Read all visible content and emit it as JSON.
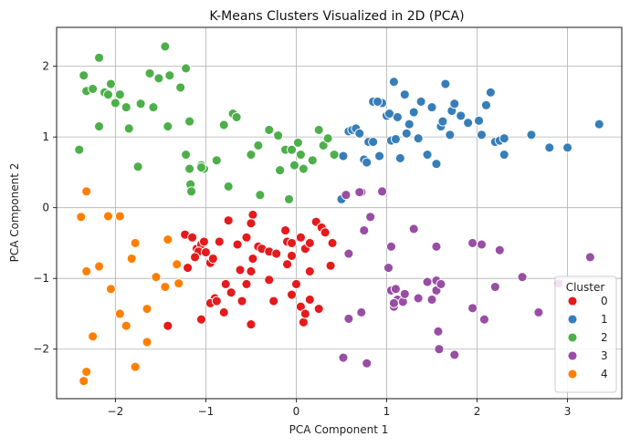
{
  "chart_data": {
    "type": "scatter",
    "title": "K-Means Clusters Visualized in 2D (PCA)",
    "xlabel": "PCA Component 1",
    "ylabel": "PCA Component 2",
    "xlim": [
      -2.65,
      3.6
    ],
    "ylim": [
      -2.7,
      2.55
    ],
    "xticks": [
      -2,
      -1,
      0,
      1,
      2,
      3
    ],
    "yticks": [
      -2,
      -1,
      0,
      1,
      2
    ],
    "grid": true,
    "legend": {
      "title": "Cluster",
      "placement": "bottom-right"
    },
    "series": [
      {
        "name": "0",
        "color": "#e41a1c",
        "points": [
          [
            -1.23,
            -0.38
          ],
          [
            -1.15,
            -0.42
          ],
          [
            -1.1,
            -0.58
          ],
          [
            -1.05,
            -0.52
          ],
          [
            -1.02,
            -0.48
          ],
          [
            -1.08,
            -0.62
          ],
          [
            -1.12,
            -0.7
          ],
          [
            -1.0,
            -0.63
          ],
          [
            -0.95,
            -0.78
          ],
          [
            -0.85,
            -0.48
          ],
          [
            -0.75,
            -0.18
          ],
          [
            -0.65,
            -0.52
          ],
          [
            -0.55,
            -0.42
          ],
          [
            -0.48,
            -0.1
          ],
          [
            -0.5,
            -0.22
          ],
          [
            -0.42,
            -0.55
          ],
          [
            -0.38,
            -0.58
          ],
          [
            -0.3,
            -0.62
          ],
          [
            -0.22,
            -0.65
          ],
          [
            -0.12,
            -0.32
          ],
          [
            -0.1,
            -0.48
          ],
          [
            -0.05,
            -0.5
          ],
          [
            0.05,
            -0.42
          ],
          [
            0.1,
            -0.58
          ],
          [
            0.15,
            -0.5
          ],
          [
            0.22,
            -0.2
          ],
          [
            0.28,
            -0.28
          ],
          [
            0.32,
            -0.35
          ],
          [
            0.38,
            -0.82
          ],
          [
            0.4,
            -0.5
          ],
          [
            -0.62,
            -0.88
          ],
          [
            -0.55,
            -1.08
          ],
          [
            -0.48,
            -0.72
          ],
          [
            -0.5,
            -0.9
          ],
          [
            -0.3,
            -1.02
          ],
          [
            -0.1,
            -0.8
          ],
          [
            -0.05,
            -0.68
          ],
          [
            0.15,
            -0.9
          ],
          [
            -0.78,
            -1.08
          ],
          [
            -0.72,
            -1.2
          ],
          [
            -0.9,
            -1.28
          ],
          [
            -0.95,
            -1.35
          ],
          [
            -1.05,
            -1.58
          ],
          [
            -0.88,
            -1.32
          ],
          [
            -0.8,
            -1.48
          ],
          [
            -0.6,
            -1.32
          ],
          [
            -0.5,
            -1.65
          ],
          [
            -0.25,
            -1.32
          ],
          [
            -0.05,
            -1.23
          ],
          [
            0.05,
            -1.4
          ],
          [
            0.15,
            -1.3
          ],
          [
            0.25,
            -1.43
          ],
          [
            0.08,
            -1.62
          ],
          [
            0.1,
            -1.5
          ],
          [
            0.0,
            -1.08
          ],
          [
            -1.42,
            -1.67
          ],
          [
            -1.2,
            -0.85
          ],
          [
            -0.92,
            -0.72
          ]
        ]
      },
      {
        "name": "1",
        "color": "#377eb8",
        "points": [
          [
            0.5,
            0.12
          ],
          [
            0.52,
            0.73
          ],
          [
            0.58,
            1.08
          ],
          [
            0.62,
            1.1
          ],
          [
            0.66,
            1.12
          ],
          [
            0.7,
            1.05
          ],
          [
            0.75,
            0.68
          ],
          [
            0.78,
            0.64
          ],
          [
            0.8,
            0.93
          ],
          [
            0.85,
            0.93
          ],
          [
            0.85,
            1.5
          ],
          [
            0.92,
            0.73
          ],
          [
            0.95,
            1.48
          ],
          [
            1.0,
            1.3
          ],
          [
            1.05,
            0.95
          ],
          [
            1.08,
            1.78
          ],
          [
            1.1,
            0.97
          ],
          [
            1.12,
            1.28
          ],
          [
            1.15,
            0.7
          ],
          [
            1.2,
            1.6
          ],
          [
            1.22,
            1.05
          ],
          [
            1.25,
            1.18
          ],
          [
            1.3,
            1.35
          ],
          [
            1.35,
            0.98
          ],
          [
            1.38,
            1.5
          ],
          [
            1.45,
            0.75
          ],
          [
            1.5,
            1.42
          ],
          [
            1.55,
            0.62
          ],
          [
            1.6,
            1.15
          ],
          [
            1.62,
            1.22
          ],
          [
            1.65,
            1.75
          ],
          [
            1.7,
            1.03
          ],
          [
            1.72,
            1.37
          ],
          [
            1.82,
            1.3
          ],
          [
            1.9,
            1.2
          ],
          [
            2.02,
            1.23
          ],
          [
            2.05,
            1.03
          ],
          [
            2.1,
            1.45
          ],
          [
            2.15,
            1.63
          ],
          [
            2.2,
            0.93
          ],
          [
            2.25,
            0.95
          ],
          [
            2.3,
            0.98
          ],
          [
            2.3,
            0.75
          ],
          [
            2.6,
            1.03
          ],
          [
            2.8,
            0.85
          ],
          [
            3.0,
            0.85
          ],
          [
            3.35,
            1.18
          ],
          [
            1.03,
            1.33
          ],
          [
            0.9,
            1.5
          ],
          [
            1.75,
            1.47
          ]
        ]
      },
      {
        "name": "2",
        "color": "#4daf4a",
        "points": [
          [
            -2.4,
            0.82
          ],
          [
            -2.35,
            1.87
          ],
          [
            -2.32,
            1.65
          ],
          [
            -2.25,
            1.68
          ],
          [
            -2.18,
            2.12
          ],
          [
            -2.18,
            1.15
          ],
          [
            -2.12,
            1.63
          ],
          [
            -2.08,
            1.6
          ],
          [
            -2.05,
            1.75
          ],
          [
            -2.0,
            1.48
          ],
          [
            -1.95,
            1.6
          ],
          [
            -1.88,
            1.42
          ],
          [
            -1.85,
            1.12
          ],
          [
            -1.75,
            0.58
          ],
          [
            -1.72,
            1.47
          ],
          [
            -1.62,
            1.9
          ],
          [
            -1.58,
            1.42
          ],
          [
            -1.52,
            1.83
          ],
          [
            -1.45,
            2.28
          ],
          [
            -1.42,
            1.15
          ],
          [
            -1.4,
            1.87
          ],
          [
            -1.28,
            1.7
          ],
          [
            -1.22,
            1.97
          ],
          [
            -1.22,
            0.75
          ],
          [
            -1.18,
            1.22
          ],
          [
            -1.18,
            0.55
          ],
          [
            -1.17,
            0.33
          ],
          [
            -1.16,
            0.23
          ],
          [
            -1.05,
            0.6
          ],
          [
            -1.02,
            0.55
          ],
          [
            -0.88,
            0.67
          ],
          [
            -0.8,
            1.17
          ],
          [
            -0.75,
            0.3
          ],
          [
            -0.7,
            1.33
          ],
          [
            -0.66,
            1.28
          ],
          [
            -0.5,
            0.75
          ],
          [
            -0.42,
            0.88
          ],
          [
            -0.4,
            0.18
          ],
          [
            -0.3,
            1.1
          ],
          [
            -0.2,
            1.02
          ],
          [
            -0.18,
            0.53
          ],
          [
            -0.12,
            0.82
          ],
          [
            -0.05,
            0.82
          ],
          [
            -0.08,
            0.12
          ],
          [
            -0.02,
            0.6
          ],
          [
            0.02,
            0.92
          ],
          [
            0.05,
            0.75
          ],
          [
            0.08,
            0.55
          ],
          [
            0.18,
            0.67
          ],
          [
            0.25,
            1.1
          ],
          [
            0.3,
            0.88
          ],
          [
            0.35,
            0.98
          ],
          [
            0.42,
            0.75
          ],
          [
            -1.05,
            0.57
          ]
        ]
      },
      {
        "name": "3",
        "color": "#984ea3",
        "points": [
          [
            0.55,
            0.18
          ],
          [
            0.72,
            0.22
          ],
          [
            0.95,
            0.23
          ],
          [
            0.82,
            -0.13
          ],
          [
            0.75,
            -0.32
          ],
          [
            0.58,
            -0.65
          ],
          [
            1.05,
            -0.55
          ],
          [
            1.3,
            -0.3
          ],
          [
            1.55,
            -0.55
          ],
          [
            1.95,
            -0.5
          ],
          [
            2.05,
            -0.52
          ],
          [
            2.25,
            -0.6
          ],
          [
            1.02,
            -0.85
          ],
          [
            1.05,
            -1.17
          ],
          [
            1.1,
            -1.15
          ],
          [
            1.12,
            -1.3
          ],
          [
            1.08,
            -1.4
          ],
          [
            1.18,
            -1.33
          ],
          [
            1.2,
            -1.22
          ],
          [
            1.35,
            -1.28
          ],
          [
            1.45,
            -1.05
          ],
          [
            1.55,
            -1.03
          ],
          [
            1.55,
            -1.17
          ],
          [
            1.6,
            -1.08
          ],
          [
            2.2,
            -1.12
          ],
          [
            1.95,
            -1.42
          ],
          [
            2.08,
            -1.58
          ],
          [
            2.5,
            -0.98
          ],
          [
            2.68,
            -1.48
          ],
          [
            2.9,
            -1.07
          ],
          [
            3.25,
            -0.7
          ],
          [
            0.58,
            -1.57
          ],
          [
            0.72,
            -1.48
          ],
          [
            0.52,
            -2.12
          ],
          [
            0.78,
            -2.2
          ],
          [
            1.57,
            -1.75
          ],
          [
            1.58,
            -2.0
          ],
          [
            1.75,
            -2.08
          ],
          [
            1.08,
            -1.35
          ],
          [
            1.5,
            -1.3
          ],
          [
            0.7,
            0.22
          ]
        ]
      },
      {
        "name": "4",
        "color": "#ff7f00",
        "points": [
          [
            -2.32,
            0.23
          ],
          [
            -2.38,
            -0.13
          ],
          [
            -2.08,
            -0.12
          ],
          [
            -1.95,
            -0.12
          ],
          [
            -2.32,
            -0.9
          ],
          [
            -2.18,
            -0.83
          ],
          [
            -1.78,
            -0.5
          ],
          [
            -1.82,
            -0.72
          ],
          [
            -1.42,
            -0.45
          ],
          [
            -1.55,
            -0.98
          ],
          [
            -1.32,
            -0.8
          ],
          [
            -1.3,
            -1.07
          ],
          [
            -1.65,
            -1.43
          ],
          [
            -2.05,
            -1.15
          ],
          [
            -1.95,
            -1.5
          ],
          [
            -1.88,
            -1.67
          ],
          [
            -2.25,
            -1.82
          ],
          [
            -1.65,
            -1.9
          ],
          [
            -1.78,
            -2.25
          ],
          [
            -2.32,
            -2.32
          ],
          [
            -2.35,
            -2.45
          ],
          [
            -1.45,
            -1.12
          ]
        ]
      }
    ]
  }
}
